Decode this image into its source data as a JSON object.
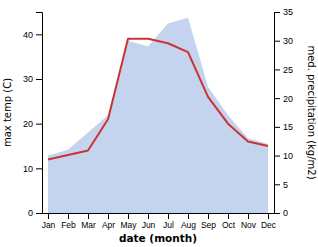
{
  "chart_data": {
    "type": "line",
    "x_label": "date (month)",
    "y_label": "max temp (C)",
    "y2_label": "med. precipitation (kg/m2)",
    "categories": [
      "Jan",
      "Feb",
      "Mar",
      "Apr",
      "May",
      "Jun",
      "Jul",
      "Aug",
      "Sep",
      "Oct",
      "Nov",
      "Dec"
    ],
    "series": [
      {
        "type": "line",
        "color": "#cc3333",
        "values": [
          12,
          13,
          14,
          21,
          39,
          39,
          38,
          36,
          26,
          20,
          16,
          15
        ]
      },
      {
        "type": "area",
        "color": "#c5d4ee",
        "axis": "y2",
        "values": [
          10,
          11,
          14,
          17,
          30,
          29,
          33,
          34,
          22,
          17,
          13,
          12
        ]
      }
    ],
    "ylim": [
      0,
      45
    ],
    "yticks": [
      0,
      10,
      20,
      30,
      40
    ],
    "y2lim": [
      0,
      35
    ],
    "y2ticks": [
      0,
      5,
      10,
      15,
      20,
      25,
      30,
      35
    ]
  }
}
